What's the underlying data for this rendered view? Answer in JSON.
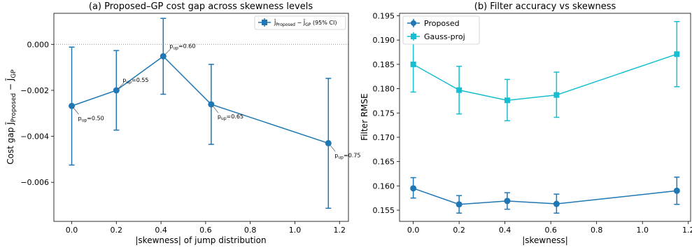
{
  "chart_data": [
    {
      "type": "line",
      "title": "(a)  Proposed–GP cost gap across skewness levels",
      "xlabel": "|skewness| of jump distribution",
      "ylabel": "Cost gap J̄Proposed − J̄GP",
      "xlim": [
        -0.08,
        1.24
      ],
      "ylim": [
        -0.0077,
        0.00135
      ],
      "xticks": [
        0.0,
        0.2,
        0.4,
        0.6,
        0.8,
        1.0,
        1.2
      ],
      "xtick_labels": [
        "0.0",
        "0.2",
        "0.4",
        "0.6",
        "0.8",
        "1.0",
        "1.2"
      ],
      "yticks": [
        0.0,
        -0.002,
        -0.004,
        -0.006
      ],
      "ytick_labels": [
        "0.000",
        "−0.002",
        "−0.004",
        "−0.006"
      ],
      "reference_line": 0.0,
      "grid": false,
      "legend_position": "top-right",
      "color": "#1f77b4",
      "series": [
        {
          "name": "J̄Proposed − J̄GP (95% CI)",
          "x": [
            0.0,
            0.2,
            0.41,
            0.625,
            1.15
          ],
          "y": [
            -0.00268,
            -0.002,
            -0.00052,
            -0.00261,
            -0.0043
          ],
          "err_low": [
            -0.00525,
            -0.00373,
            -0.00217,
            -0.00435,
            -0.00713
          ],
          "err_high": [
            -0.00012,
            -0.00027,
            0.00113,
            -0.00087,
            -0.00148
          ]
        }
      ],
      "annotations": [
        {
          "text": "pup=0.50",
          "x": 0.0,
          "y": -0.00268,
          "side": "below-right"
        },
        {
          "text": "pup=0.55",
          "x": 0.2,
          "y": -0.002,
          "side": "above-right"
        },
        {
          "text": "pup=0.60",
          "x": 0.41,
          "y": -0.00052,
          "side": "above-right"
        },
        {
          "text": "pup=0.65",
          "x": 0.625,
          "y": -0.00261,
          "side": "below-right"
        },
        {
          "text": "pup=0.75",
          "x": 1.15,
          "y": -0.0043,
          "side": "below-right"
        }
      ]
    },
    {
      "type": "line",
      "title": "(b)  Filter accuracy vs skewness",
      "xlabel": "|skewness|",
      "ylabel": "Filter RMSE",
      "xlim": [
        -0.06,
        1.21
      ],
      "ylim": [
        0.1527,
        0.1955
      ],
      "xticks": [
        0.0,
        0.2,
        0.4,
        0.6,
        0.8,
        1.0,
        1.2
      ],
      "xtick_labels": [
        "0.0",
        "0.2",
        "0.4",
        "0.6",
        "0.8",
        "1.0",
        "1.2"
      ],
      "yticks": [
        0.155,
        0.16,
        0.165,
        0.17,
        0.175,
        0.18,
        0.185,
        0.19,
        0.195
      ],
      "ytick_labels": [
        "0.155",
        "0.160",
        "0.165",
        "0.170",
        "0.175",
        "0.180",
        "0.185",
        "0.190",
        "0.195"
      ],
      "grid": false,
      "legend_position": "top-left",
      "series": [
        {
          "name": "Proposed",
          "marker": "circle",
          "color": "#1f77b4",
          "x": [
            0.0,
            0.2,
            0.41,
            0.625,
            1.15
          ],
          "y": [
            0.1595,
            0.1562,
            0.1569,
            0.1563,
            0.159
          ],
          "err_low": [
            0.1575,
            0.1544,
            0.1552,
            0.1544,
            0.1562
          ],
          "err_high": [
            0.1617,
            0.158,
            0.1586,
            0.1583,
            0.1618
          ]
        },
        {
          "name": "Gauss-proj",
          "marker": "square",
          "color": "#17becf",
          "x": [
            0.0,
            0.2,
            0.41,
            0.625,
            1.15
          ],
          "y": [
            0.185,
            0.1797,
            0.1776,
            0.1787,
            0.1871
          ],
          "err_low": [
            0.1793,
            0.1748,
            0.1734,
            0.1741,
            0.1804
          ],
          "err_high": [
            0.1902,
            0.1846,
            0.1819,
            0.1834,
            0.1938
          ]
        }
      ]
    }
  ]
}
